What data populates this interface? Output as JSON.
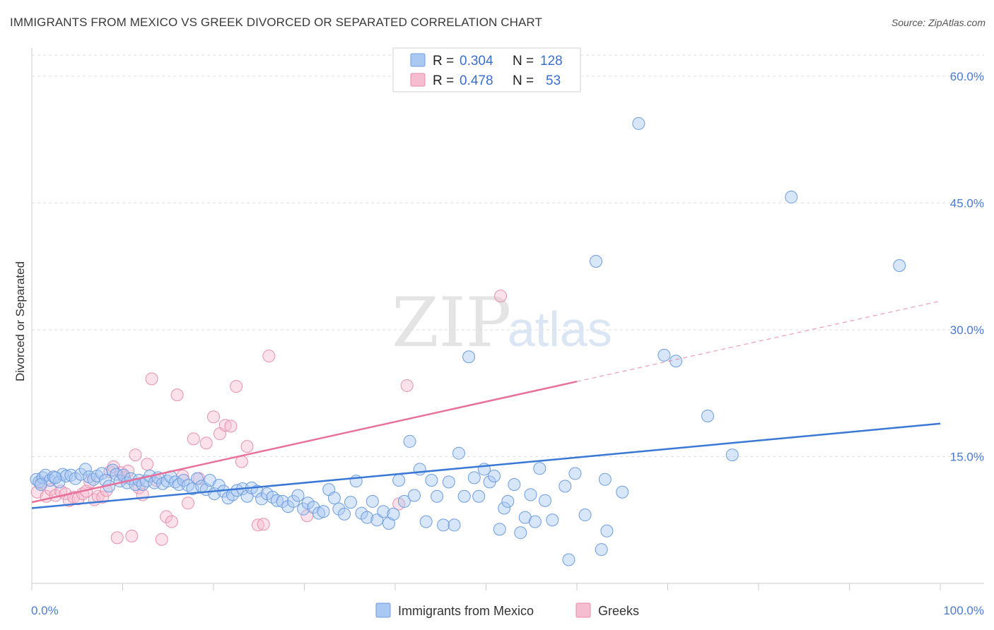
{
  "header": {
    "title": "IMMIGRANTS FROM MEXICO VS GREEK DIVORCED OR SEPARATED CORRELATION CHART",
    "source": "Source: ZipAtlas.com"
  },
  "watermark": {
    "zip": "ZIP",
    "atlas": "atlas"
  },
  "legend_box": {
    "rows": [
      {
        "r_label": "R =",
        "r_value": "0.304",
        "n_label": "N =",
        "n_value": "128",
        "color": "#a9c8f2"
      },
      {
        "r_label": "R =",
        "r_value": "0.478",
        "n_label": "N =",
        "n_value": "53",
        "color": "#f6bcd0"
      }
    ]
  },
  "bottom_legend": [
    {
      "label": "Immigrants from Mexico",
      "color": "#a9c8f2"
    },
    {
      "label": "Greeks",
      "color": "#f6bcd0"
    }
  ],
  "chart_data": {
    "type": "scatter",
    "title": "IMMIGRANTS FROM MEXICO VS GREEK DIVORCED OR SEPARATED CORRELATION CHART",
    "xlabel": "",
    "ylabel": "Divorced or Separated",
    "xlim": [
      0,
      100
    ],
    "ylim": [
      0,
      63
    ],
    "x_tick_labels": [
      "0.0%",
      "100.0%"
    ],
    "y_ticks": [
      15,
      30,
      45,
      60
    ],
    "y_tick_labels": [
      "15.0%",
      "30.0%",
      "45.0%",
      "60.0%"
    ],
    "grid": true,
    "legend_position": "top-center",
    "colors": {
      "mexico": "#3a78d6",
      "greeks": "#e8719b"
    },
    "series": [
      {
        "name": "Immigrants from Mexico",
        "r": 0.304,
        "n": 128,
        "trend": {
          "x": [
            0,
            100
          ],
          "y": [
            8.9,
            18.9
          ],
          "dashed_from": null
        },
        "points": [
          [
            0.5,
            12.3
          ],
          [
            0.8,
            12.0
          ],
          [
            1.2,
            12.5
          ],
          [
            1.5,
            12.8
          ],
          [
            2.0,
            12.2
          ],
          [
            2.4,
            12.6
          ],
          [
            3.0,
            12.0
          ],
          [
            3.4,
            12.9
          ],
          [
            3.8,
            12.7
          ],
          [
            4.3,
            12.8
          ],
          [
            4.8,
            12.4
          ],
          [
            5.4,
            12.9
          ],
          [
            5.9,
            13.5
          ],
          [
            6.3,
            12.6
          ],
          [
            6.8,
            12.3
          ],
          [
            7.2,
            12.7
          ],
          [
            7.7,
            13.0
          ],
          [
            8.1,
            12.2
          ],
          [
            8.5,
            11.5
          ],
          [
            8.9,
            13.4
          ],
          [
            9.3,
            12.9
          ],
          [
            9.7,
            12.1
          ],
          [
            10.1,
            12.8
          ],
          [
            10.5,
            11.9
          ],
          [
            10.9,
            12.4
          ],
          [
            11.4,
            11.7
          ],
          [
            11.8,
            12.2
          ],
          [
            12.2,
            11.7
          ],
          [
            12.6,
            12.1
          ],
          [
            13.0,
            12.7
          ],
          [
            13.5,
            11.9
          ],
          [
            13.9,
            12.5
          ],
          [
            14.4,
            11.8
          ],
          [
            14.9,
            12.1
          ],
          [
            15.3,
            12.6
          ],
          [
            15.8,
            12.0
          ],
          [
            16.2,
            11.7
          ],
          [
            16.7,
            12.2
          ],
          [
            17.2,
            11.6
          ],
          [
            17.7,
            11.2
          ],
          [
            18.2,
            12.4
          ],
          [
            18.7,
            11.5
          ],
          [
            19.2,
            11.1
          ],
          [
            19.6,
            12.2
          ],
          [
            20.1,
            10.6
          ],
          [
            20.6,
            11.6
          ],
          [
            21.1,
            10.9
          ],
          [
            21.6,
            10.1
          ],
          [
            22.1,
            10.5
          ],
          [
            22.6,
            11.0
          ],
          [
            23.2,
            11.2
          ],
          [
            23.7,
            10.3
          ],
          [
            24.2,
            11.3
          ],
          [
            24.8,
            10.9
          ],
          [
            25.3,
            10.0
          ],
          [
            25.9,
            10.6
          ],
          [
            26.5,
            10.2
          ],
          [
            27.0,
            9.8
          ],
          [
            27.6,
            9.7
          ],
          [
            28.2,
            9.1
          ],
          [
            28.8,
            9.7
          ],
          [
            29.3,
            10.4
          ],
          [
            29.9,
            8.8
          ],
          [
            30.4,
            9.5
          ],
          [
            31.0,
            9.0
          ],
          [
            31.6,
            8.3
          ],
          [
            32.1,
            8.5
          ],
          [
            32.7,
            11.1
          ],
          [
            33.3,
            10.1
          ],
          [
            33.8,
            8.8
          ],
          [
            34.4,
            8.2
          ],
          [
            35.1,
            9.6
          ],
          [
            35.7,
            12.1
          ],
          [
            36.3,
            8.3
          ],
          [
            36.9,
            7.8
          ],
          [
            37.5,
            9.7
          ],
          [
            38.0,
            7.5
          ],
          [
            38.7,
            8.5
          ],
          [
            39.3,
            7.1
          ],
          [
            39.8,
            8.2
          ],
          [
            40.4,
            12.2
          ],
          [
            41.0,
            9.7
          ],
          [
            41.6,
            16.8
          ],
          [
            42.1,
            10.4
          ],
          [
            42.7,
            13.5
          ],
          [
            43.4,
            7.3
          ],
          [
            44.0,
            12.2
          ],
          [
            44.6,
            10.3
          ],
          [
            45.3,
            6.9
          ],
          [
            45.9,
            12.0
          ],
          [
            46.5,
            6.9
          ],
          [
            47.0,
            15.4
          ],
          [
            47.6,
            10.3
          ],
          [
            48.1,
            26.8
          ],
          [
            48.7,
            12.5
          ],
          [
            49.2,
            10.3
          ],
          [
            49.8,
            13.5
          ],
          [
            50.4,
            12.0
          ],
          [
            50.9,
            12.7
          ],
          [
            51.5,
            6.4
          ],
          [
            52.0,
            8.9
          ],
          [
            52.4,
            9.7
          ],
          [
            53.1,
            11.7
          ],
          [
            53.8,
            6.0
          ],
          [
            54.3,
            7.8
          ],
          [
            54.9,
            10.5
          ],
          [
            55.4,
            7.3
          ],
          [
            55.9,
            13.6
          ],
          [
            56.5,
            9.8
          ],
          [
            57.3,
            7.5
          ],
          [
            58.7,
            11.5
          ],
          [
            59.1,
            2.8
          ],
          [
            59.8,
            13.0
          ],
          [
            60.9,
            8.1
          ],
          [
            62.1,
            38.1
          ],
          [
            62.7,
            4.0
          ],
          [
            63.1,
            12.3
          ],
          [
            63.3,
            6.2
          ],
          [
            65.0,
            10.8
          ],
          [
            66.8,
            54.4
          ],
          [
            69.6,
            27.0
          ],
          [
            70.9,
            26.3
          ],
          [
            74.4,
            19.8
          ],
          [
            77.1,
            15.2
          ],
          [
            83.6,
            45.7
          ],
          [
            95.5,
            37.6
          ],
          [
            1.0,
            11.7
          ],
          [
            2.6,
            12.5
          ]
        ]
      },
      {
        "name": "Greeks",
        "r": 0.478,
        "n": 53,
        "trend": {
          "x": [
            0,
            100
          ],
          "y": [
            9.6,
            33.4
          ],
          "dashed_from": 60
        },
        "points": [
          [
            0.6,
            10.8
          ],
          [
            1.0,
            11.9
          ],
          [
            1.6,
            10.3
          ],
          [
            2.1,
            11.1
          ],
          [
            2.6,
            10.4
          ],
          [
            3.2,
            10.9
          ],
          [
            3.7,
            10.6
          ],
          [
            4.1,
            9.8
          ],
          [
            4.6,
            10.2
          ],
          [
            5.1,
            10.0
          ],
          [
            5.6,
            10.6
          ],
          [
            6.0,
            10.9
          ],
          [
            6.4,
            12.0
          ],
          [
            6.9,
            9.9
          ],
          [
            7.3,
            10.3
          ],
          [
            7.8,
            10.2
          ],
          [
            8.2,
            11.0
          ],
          [
            8.6,
            13.2
          ],
          [
            9.0,
            13.8
          ],
          [
            9.4,
            5.4
          ],
          [
            9.8,
            13.1
          ],
          [
            10.2,
            12.5
          ],
          [
            10.6,
            13.3
          ],
          [
            11.0,
            5.6
          ],
          [
            11.4,
            15.2
          ],
          [
            11.8,
            11.3
          ],
          [
            12.2,
            10.5
          ],
          [
            12.7,
            14.1
          ],
          [
            13.2,
            24.2
          ],
          [
            13.7,
            12.2
          ],
          [
            14.3,
            5.2
          ],
          [
            14.8,
            7.9
          ],
          [
            15.4,
            7.3
          ],
          [
            16.0,
            22.3
          ],
          [
            16.6,
            12.7
          ],
          [
            17.2,
            9.5
          ],
          [
            17.8,
            17.1
          ],
          [
            18.4,
            12.4
          ],
          [
            19.2,
            16.6
          ],
          [
            20.0,
            19.7
          ],
          [
            20.7,
            17.7
          ],
          [
            21.3,
            18.7
          ],
          [
            21.9,
            18.6
          ],
          [
            22.5,
            23.3
          ],
          [
            23.1,
            14.4
          ],
          [
            23.7,
            16.2
          ],
          [
            24.9,
            6.9
          ],
          [
            25.5,
            7.0
          ],
          [
            26.1,
            26.9
          ],
          [
            30.3,
            8.0
          ],
          [
            41.3,
            23.4
          ],
          [
            40.4,
            9.4
          ],
          [
            51.6,
            34.0
          ]
        ]
      }
    ]
  }
}
